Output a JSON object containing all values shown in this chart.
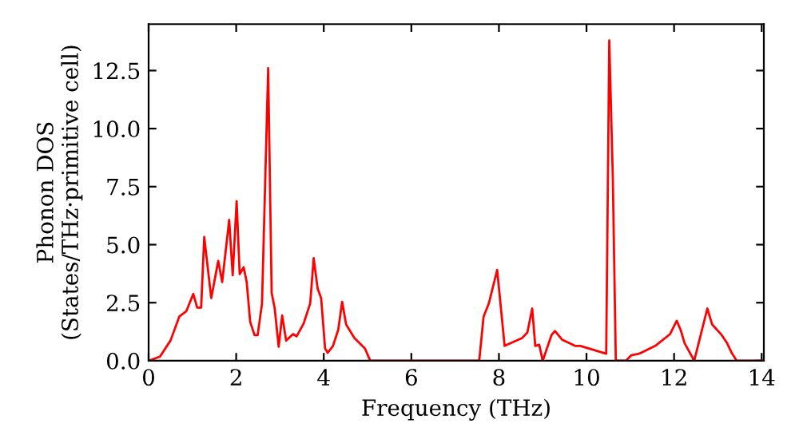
{
  "chart_data": {
    "type": "line",
    "xlabel": "Frequency (THz)",
    "ylabel": "Phonon DOS\n(States/THz·primitive cell)",
    "xlim": [
      0,
      14.05
    ],
    "ylim": [
      0,
      14.5
    ],
    "xticks": [
      0,
      2,
      4,
      6,
      8,
      10,
      12,
      14
    ],
    "yticks": [
      {
        "value": 0,
        "label": "0.0"
      },
      2.5,
      {
        "value": 5,
        "label": "5.0"
      },
      7.5,
      {
        "value": 10,
        "label": "10.0"
      },
      12.5
    ],
    "grid": false,
    "series": [
      {
        "color": "#ff0000",
        "x": [
          0,
          0.26,
          0.5,
          0.7,
          0.86,
          1.02,
          1.11,
          1.2,
          1.27,
          1.43,
          1.59,
          1.68,
          1.84,
          1.92,
          2.01,
          2.08,
          2.17,
          2.24,
          2.32,
          2.42,
          2.49,
          2.59,
          2.73,
          2.81,
          2.88,
          2.97,
          3.05,
          3.14,
          3.3,
          3.38,
          3.54,
          3.69,
          3.77,
          3.86,
          3.94,
          4.03,
          4.09,
          4.21,
          4.33,
          4.42,
          4.51,
          4.7,
          4.94,
          5.06,
          7.55,
          7.65,
          7.77,
          7.96,
          8.13,
          8.53,
          8.65,
          8.76,
          8.83,
          8.92,
          9.0,
          9.2,
          9.28,
          9.44,
          9.74,
          9.86,
          10.45,
          10.52,
          10.6,
          10.67,
          10.9,
          11.02,
          11.2,
          11.57,
          11.91,
          12.06,
          12.15,
          12.24,
          12.46,
          12.76,
          12.87,
          13.09,
          13.21,
          13.31,
          13.43,
          14.0
        ],
        "values": [
          0,
          0.18,
          0.87,
          1.9,
          2.13,
          2.88,
          2.29,
          2.29,
          5.33,
          2.7,
          4.3,
          3.39,
          6.07,
          3.68,
          6.87,
          3.73,
          4.03,
          3.39,
          1.67,
          1.1,
          1.1,
          2.47,
          12.6,
          2.93,
          2.25,
          0.6,
          1.95,
          0.87,
          1.15,
          1.05,
          1.6,
          2.47,
          4.42,
          3.11,
          2.7,
          0.53,
          0.34,
          0.64,
          1.33,
          2.54,
          1.56,
          0.98,
          0.53,
          0,
          0,
          1.9,
          2.47,
          3.91,
          0.64,
          0.98,
          1.22,
          2.25,
          0.64,
          0.69,
          0,
          1.1,
          1.28,
          0.91,
          0.64,
          0.64,
          0.3,
          13.8,
          7.97,
          0,
          0,
          0.23,
          0.3,
          0.64,
          1.15,
          1.72,
          1.33,
          0.76,
          0,
          2.25,
          1.56,
          1.1,
          0.76,
          0.36,
          0,
          0
        ]
      }
    ]
  }
}
